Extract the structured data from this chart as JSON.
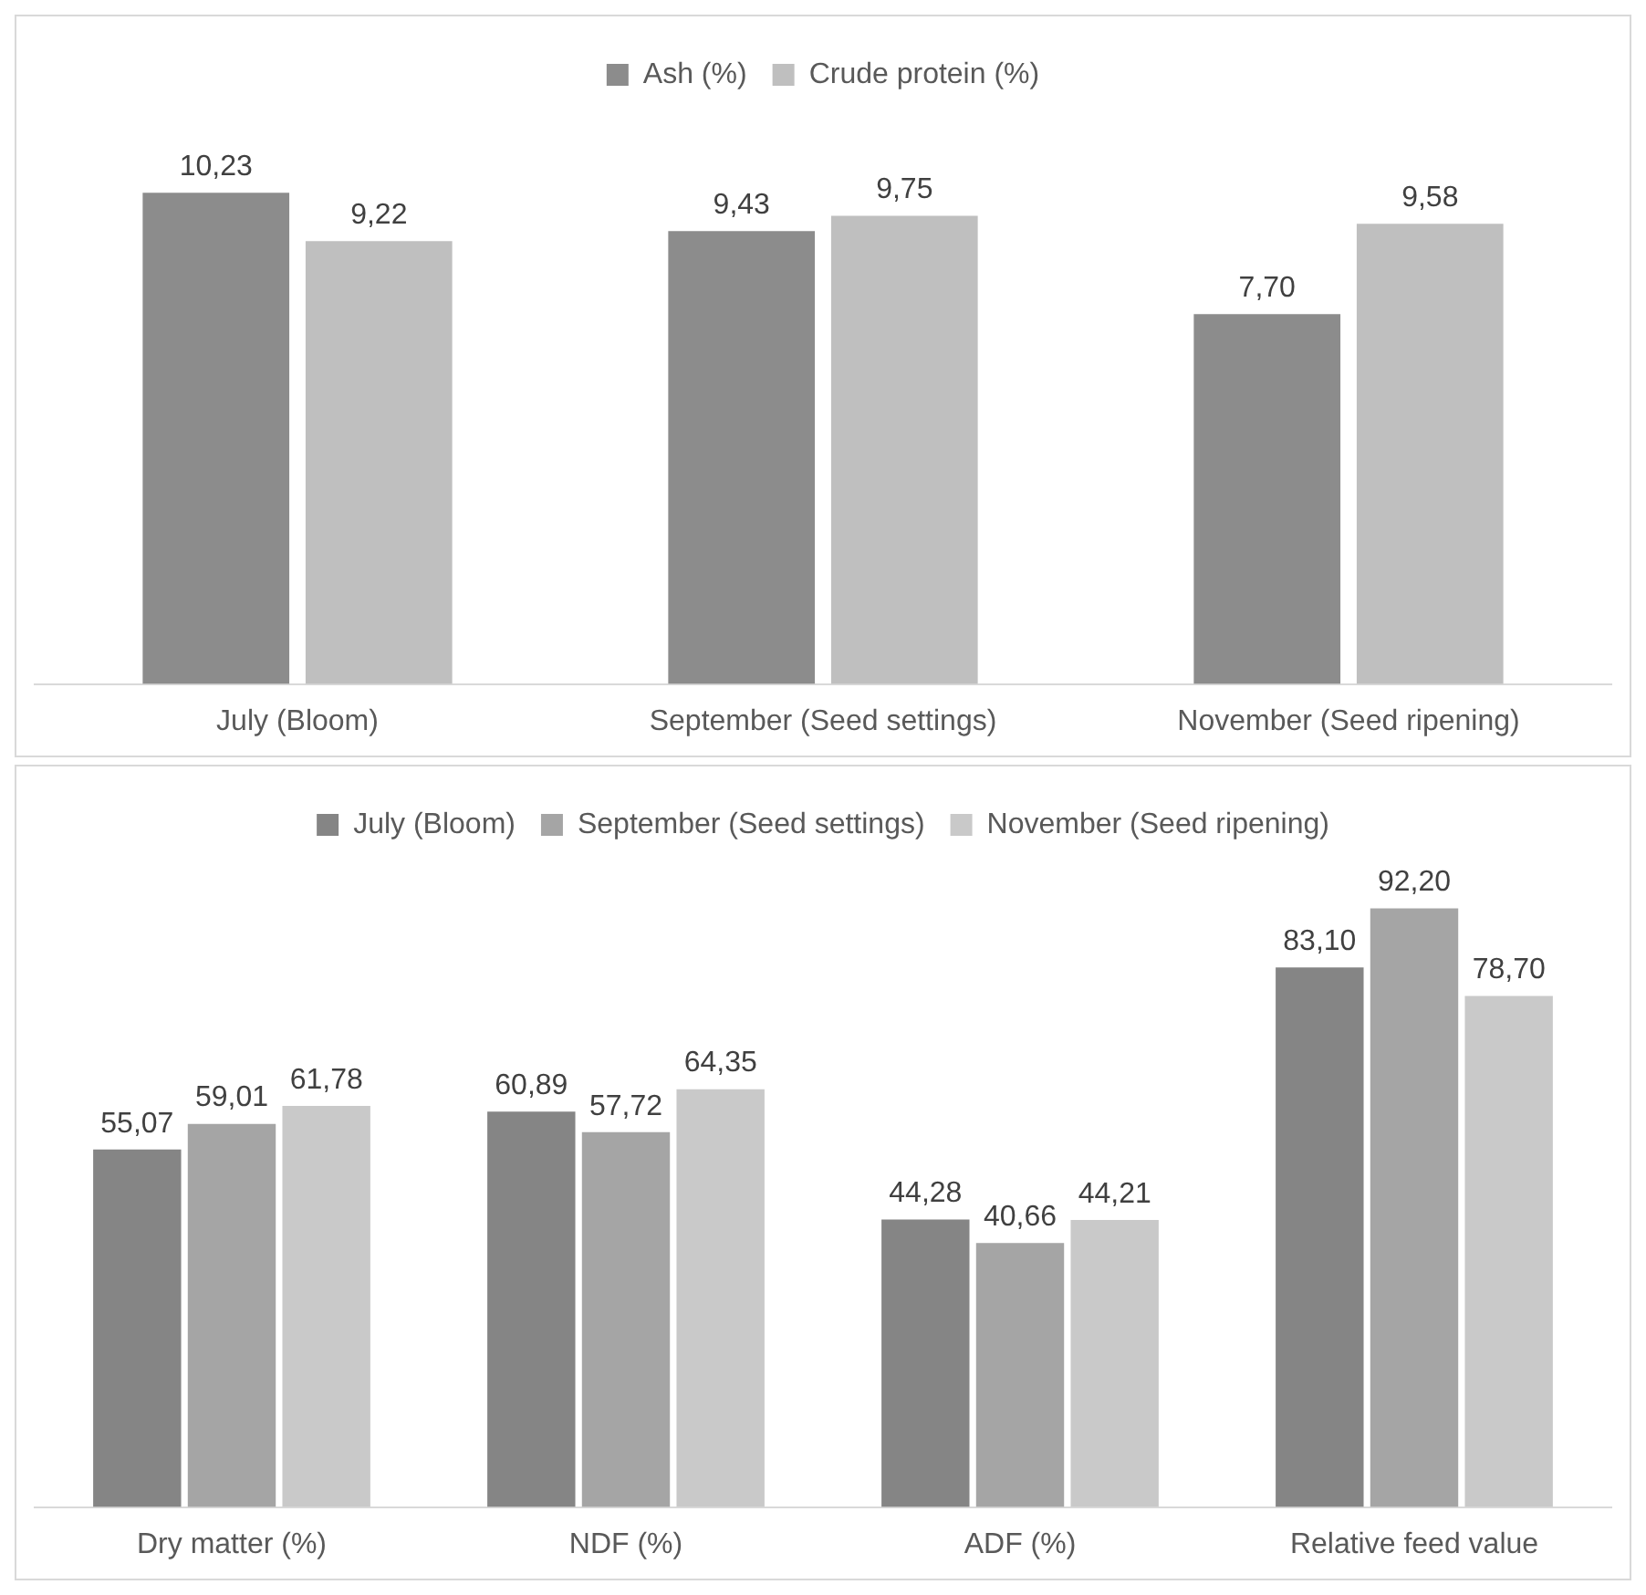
{
  "chart_data": [
    {
      "type": "bar",
      "categories": [
        "July (Bloom)",
        "September (Seed settings)",
        "November (Seed ripening)"
      ],
      "legend": "top",
      "series": [
        {
          "name": "Ash (%)",
          "color": "#8c8c8c",
          "values": [
            10.23,
            9.43,
            7.7
          ],
          "value_labels": [
            "10,23",
            "9,43",
            "7,70"
          ]
        },
        {
          "name": "Crude protein (%)",
          "color": "#bfbfbf",
          "values": [
            9.22,
            9.75,
            9.58
          ],
          "value_labels": [
            "9,22",
            "9,75",
            "9,58"
          ]
        }
      ]
    },
    {
      "type": "bar",
      "categories": [
        "Dry matter (%)",
        "NDF (%)",
        "ADF (%)",
        "Relative feed value"
      ],
      "legend": "top",
      "series": [
        {
          "name": "July (Bloom)",
          "color": "#858585",
          "values": [
            55.07,
            60.89,
            44.28,
            83.1
          ],
          "value_labels": [
            "55,07",
            "60,89",
            "44,28",
            "83,10"
          ]
        },
        {
          "name": "September (Seed settings)",
          "color": "#a5a5a5",
          "values": [
            59.01,
            57.72,
            40.66,
            92.2
          ],
          "value_labels": [
            "59,01",
            "57,72",
            "40,66",
            "92,20"
          ]
        },
        {
          "name": "November (Seed ripening)",
          "color": "#c9c9c9",
          "values": [
            61.78,
            64.35,
            44.21,
            78.7
          ],
          "value_labels": [
            "61,78",
            "64,35",
            "44,21",
            "78,70"
          ]
        }
      ]
    }
  ]
}
